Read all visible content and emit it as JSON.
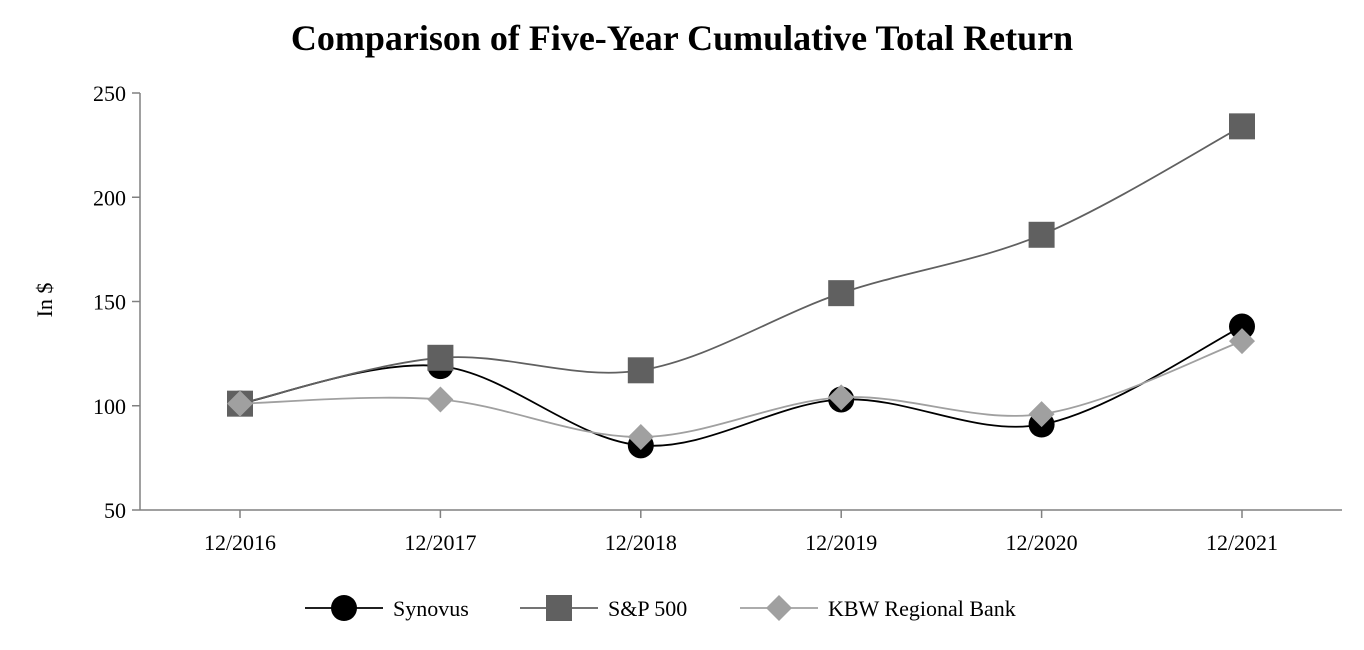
{
  "chart_data": {
    "type": "line",
    "title": "Comparison of Five-Year Cumulative Total Return",
    "xlabel": "",
    "ylabel": "In $",
    "categories": [
      "12/2016",
      "12/2017",
      "12/2018",
      "12/2019",
      "12/2020",
      "12/2021"
    ],
    "ylim": [
      50,
      250
    ],
    "yticks": [
      50,
      100,
      150,
      200,
      250
    ],
    "series": [
      {
        "name": "Synovus",
        "values": [
          101,
          119,
          81,
          103,
          91,
          138
        ],
        "color": "#000000",
        "marker": "circle"
      },
      {
        "name": "S&P 500",
        "values": [
          101,
          123,
          117,
          154,
          182,
          234
        ],
        "color": "#606060",
        "marker": "square"
      },
      {
        "name": "KBW Regional Bank",
        "values": [
          101,
          103,
          85,
          104,
          96,
          131
        ],
        "color": "#a0a0a0",
        "marker": "diamond"
      }
    ],
    "legend_position": "bottom-center",
    "grid": false
  }
}
